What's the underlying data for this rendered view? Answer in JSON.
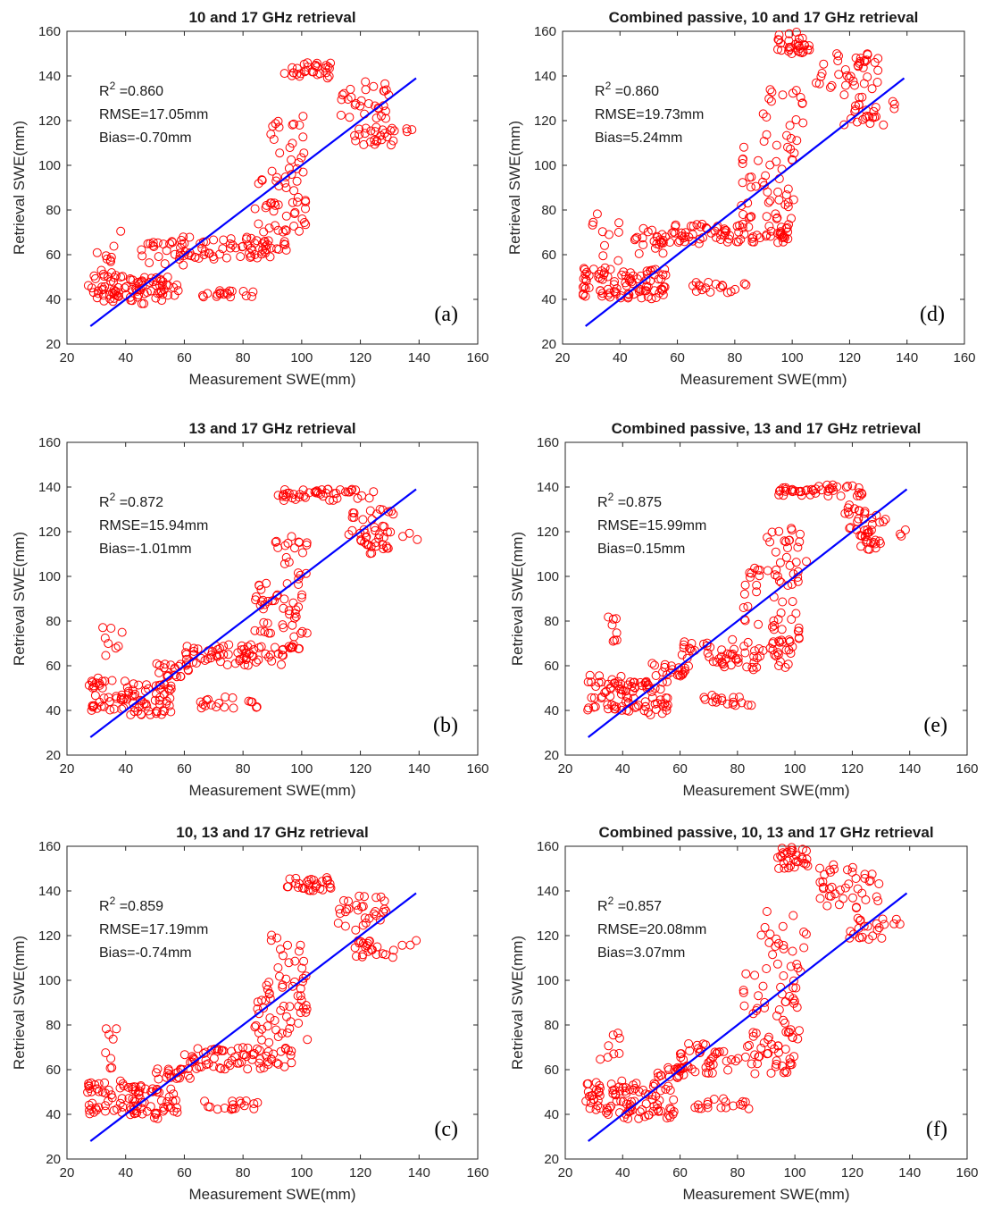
{
  "figure": {
    "background": "#ffffff",
    "marker_color": "#ff0000",
    "line_color": "#0000ff"
  },
  "chart_data": [
    {
      "id": "a",
      "type": "scatter",
      "title": "10 and 17 GHz retrieval",
      "xlabel": "Measurement SWE(mm)",
      "ylabel": "Retrieval SWE(mm)",
      "xlim": [
        20,
        160
      ],
      "ylim": [
        20,
        160
      ],
      "xticks": [
        20,
        40,
        60,
        80,
        100,
        120,
        140,
        160
      ],
      "yticks": [
        20,
        40,
        60,
        80,
        100,
        120,
        140,
        160
      ],
      "stats": {
        "r2_prefix": "R",
        "r2_exp": "2",
        "r2_value": " =0.860",
        "rmse": "RMSE=17.05mm",
        "bias": "Bias=-0.70mm"
      },
      "panel_label": "(a)",
      "fit_line": {
        "x": [
          28,
          139
        ],
        "y": [
          28,
          139
        ]
      },
      "clusters": [
        {
          "x": [
            27,
            40
          ],
          "y": [
            39,
            52
          ],
          "n": 40
        },
        {
          "x": [
            40,
            58
          ],
          "y": [
            38,
            50
          ],
          "n": 55
        },
        {
          "x": [
            29,
            39
          ],
          "y": [
            50,
            72
          ],
          "n": 10
        },
        {
          "x": [
            45,
            60
          ],
          "y": [
            55,
            66
          ],
          "n": 20
        },
        {
          "x": [
            58,
            95
          ],
          "y": [
            58,
            68
          ],
          "n": 70
        },
        {
          "x": [
            65,
            85
          ],
          "y": [
            41,
            44
          ],
          "n": 18
        },
        {
          "x": [
            84,
            102
          ],
          "y": [
            70,
            98
          ],
          "n": 45
        },
        {
          "x": [
            88,
            102
          ],
          "y": [
            98,
            122
          ],
          "n": 20
        },
        {
          "x": [
            94,
            110
          ],
          "y": [
            139,
            146
          ],
          "n": 30
        },
        {
          "x": [
            112,
            130
          ],
          "y": [
            120,
            138
          ],
          "n": 30
        },
        {
          "x": [
            118,
            132
          ],
          "y": [
            109,
            118
          ],
          "n": 25
        },
        {
          "x": [
            134,
            140
          ],
          "y": [
            114,
            118
          ],
          "n": 3
        }
      ]
    },
    {
      "id": "d",
      "type": "scatter",
      "title": "Combined passive, 10 and 17 GHz retrieval",
      "xlabel": "Measurement SWE(mm)",
      "ylabel": "Retrieval SWE(mm)",
      "xlim": [
        20,
        160
      ],
      "ylim": [
        20,
        160
      ],
      "xticks": [
        20,
        40,
        60,
        80,
        100,
        120,
        140,
        160
      ],
      "yticks": [
        20,
        40,
        60,
        80,
        100,
        120,
        140,
        160
      ],
      "stats": {
        "r2_prefix": "R",
        "r2_exp": "2",
        "r2_value": " =0.860",
        "rmse": "RMSE=19.73mm",
        "bias": "Bias=5.24mm"
      },
      "panel_label": "(d)",
      "fit_line": {
        "x": [
          28,
          139
        ],
        "y": [
          28,
          139
        ]
      },
      "clusters": [
        {
          "x": [
            27,
            40
          ],
          "y": [
            41,
            55
          ],
          "n": 40
        },
        {
          "x": [
            40,
            56
          ],
          "y": [
            40,
            54
          ],
          "n": 55
        },
        {
          "x": [
            30,
            40
          ],
          "y": [
            55,
            79
          ],
          "n": 10
        },
        {
          "x": [
            45,
            60
          ],
          "y": [
            60,
            72
          ],
          "n": 25
        },
        {
          "x": [
            58,
            100
          ],
          "y": [
            65,
            74
          ],
          "n": 80
        },
        {
          "x": [
            65,
            85
          ],
          "y": [
            43,
            48
          ],
          "n": 18
        },
        {
          "x": [
            82,
            102
          ],
          "y": [
            76,
            110
          ],
          "n": 45
        },
        {
          "x": [
            88,
            104
          ],
          "y": [
            110,
            134
          ],
          "n": 20
        },
        {
          "x": [
            94,
            106
          ],
          "y": [
            150,
            160
          ],
          "n": 30
        },
        {
          "x": [
            108,
            130
          ],
          "y": [
            130,
            152
          ],
          "n": 40
        },
        {
          "x": [
            118,
            132
          ],
          "y": [
            118,
            128
          ],
          "n": 20
        },
        {
          "x": [
            134,
            140
          ],
          "y": [
            124,
            130
          ],
          "n": 3
        }
      ]
    },
    {
      "id": "b",
      "type": "scatter",
      "title": "13 and 17 GHz retrieval",
      "xlabel": "Measurement SWE(mm)",
      "ylabel": "Retrieval SWE(mm)",
      "xlim": [
        20,
        160
      ],
      "ylim": [
        20,
        160
      ],
      "xticks": [
        20,
        40,
        60,
        80,
        100,
        120,
        140,
        160
      ],
      "yticks": [
        20,
        40,
        60,
        80,
        100,
        120,
        140,
        160
      ],
      "stats": {
        "r2_prefix": "R",
        "r2_exp": "2",
        "r2_value": " =0.872",
        "rmse": "RMSE=15.94mm",
        "bias": "Bias=-1.01mm"
      },
      "panel_label": "(b)",
      "fit_line": {
        "x": [
          28,
          139
        ],
        "y": [
          28,
          139
        ]
      },
      "clusters": [
        {
          "x": [
            27,
            40
          ],
          "y": [
            40,
            55
          ],
          "n": 40
        },
        {
          "x": [
            40,
            56
          ],
          "y": [
            38,
            52
          ],
          "n": 55
        },
        {
          "x": [
            31,
            39
          ],
          "y": [
            62,
            83
          ],
          "n": 8
        },
        {
          "x": [
            50,
            62
          ],
          "y": [
            55,
            61
          ],
          "n": 20
        },
        {
          "x": [
            60,
            100
          ],
          "y": [
            60,
            70
          ],
          "n": 75
        },
        {
          "x": [
            65,
            85
          ],
          "y": [
            40,
            46
          ],
          "n": 18
        },
        {
          "x": [
            84,
            102
          ],
          "y": [
            72,
            100
          ],
          "n": 45
        },
        {
          "x": [
            90,
            102
          ],
          "y": [
            100,
            118
          ],
          "n": 18
        },
        {
          "x": [
            92,
            125
          ],
          "y": [
            134,
            139
          ],
          "n": 45
        },
        {
          "x": [
            116,
            132
          ],
          "y": [
            118,
            130
          ],
          "n": 25
        },
        {
          "x": [
            120,
            130
          ],
          "y": [
            110,
            118
          ],
          "n": 20
        },
        {
          "x": [
            134,
            140
          ],
          "y": [
            116,
            120
          ],
          "n": 3
        }
      ]
    },
    {
      "id": "e",
      "type": "scatter",
      "title": "Combined passive, 13 and 17 GHz retrieval",
      "xlabel": "Measurement SWE(mm)",
      "ylabel": "Retrieval SWE(mm)",
      "xlim": [
        20,
        160
      ],
      "ylim": [
        20,
        160
      ],
      "xticks": [
        20,
        40,
        60,
        80,
        100,
        120,
        140,
        160
      ],
      "yticks": [
        20,
        40,
        60,
        80,
        100,
        120,
        140,
        160
      ],
      "stats": {
        "r2_prefix": "R",
        "r2_exp": "2",
        "r2_value": " =0.875",
        "rmse": "RMSE=15.99mm",
        "bias": "Bias=0.15mm"
      },
      "panel_label": "(e)",
      "fit_line": {
        "x": [
          28,
          139
        ],
        "y": [
          28,
          139
        ]
      },
      "clusters": [
        {
          "x": [
            27,
            40
          ],
          "y": [
            40,
            56
          ],
          "n": 40
        },
        {
          "x": [
            40,
            56
          ],
          "y": [
            38,
            53
          ],
          "n": 55
        },
        {
          "x": [
            32,
            38
          ],
          "y": [
            65,
            84
          ],
          "n": 8
        },
        {
          "x": [
            50,
            62
          ],
          "y": [
            55,
            62
          ],
          "n": 20
        },
        {
          "x": [
            60,
            100
          ],
          "y": [
            58,
            72
          ],
          "n": 75
        },
        {
          "x": [
            65,
            85
          ],
          "y": [
            42,
            47
          ],
          "n": 18
        },
        {
          "x": [
            82,
            102
          ],
          "y": [
            72,
            104
          ],
          "n": 45
        },
        {
          "x": [
            88,
            104
          ],
          "y": [
            104,
            122
          ],
          "n": 20
        },
        {
          "x": [
            94,
            124
          ],
          "y": [
            136,
            141
          ],
          "n": 45
        },
        {
          "x": [
            116,
            132
          ],
          "y": [
            120,
            132
          ],
          "n": 25
        },
        {
          "x": [
            120,
            130
          ],
          "y": [
            112,
            120
          ],
          "n": 20
        },
        {
          "x": [
            134,
            140
          ],
          "y": [
            118,
            121
          ],
          "n": 3
        }
      ]
    },
    {
      "id": "c",
      "type": "scatter",
      "title": "10, 13 and 17 GHz retrieval",
      "xlabel": "Measurement SWE(mm)",
      "ylabel": "Retrieval SWE(mm)",
      "xlim": [
        20,
        160
      ],
      "ylim": [
        20,
        160
      ],
      "xticks": [
        20,
        40,
        60,
        80,
        100,
        120,
        140,
        160
      ],
      "yticks": [
        20,
        40,
        60,
        80,
        100,
        120,
        140,
        160
      ],
      "stats": {
        "r2_prefix": "R",
        "r2_exp": "2",
        "r2_value": " =0.859",
        "rmse": "RMSE=17.19mm",
        "bias": "Bias=-0.74mm"
      },
      "panel_label": "(c)",
      "fit_line": {
        "x": [
          28,
          139
        ],
        "y": [
          28,
          139
        ]
      },
      "clusters": [
        {
          "x": [
            27,
            40
          ],
          "y": [
            40,
            55
          ],
          "n": 40
        },
        {
          "x": [
            40,
            58
          ],
          "y": [
            38,
            53
          ],
          "n": 60
        },
        {
          "x": [
            32,
            39
          ],
          "y": [
            60,
            79
          ],
          "n": 8
        },
        {
          "x": [
            50,
            62
          ],
          "y": [
            55,
            61
          ],
          "n": 20
        },
        {
          "x": [
            60,
            98
          ],
          "y": [
            60,
            70
          ],
          "n": 70
        },
        {
          "x": [
            65,
            85
          ],
          "y": [
            42,
            46
          ],
          "n": 18
        },
        {
          "x": [
            84,
            102
          ],
          "y": [
            72,
            98
          ],
          "n": 45
        },
        {
          "x": [
            88,
            102
          ],
          "y": [
            98,
            122
          ],
          "n": 20
        },
        {
          "x": [
            94,
            110
          ],
          "y": [
            140,
            146
          ],
          "n": 30
        },
        {
          "x": [
            112,
            130
          ],
          "y": [
            120,
            138
          ],
          "n": 30
        },
        {
          "x": [
            118,
            132
          ],
          "y": [
            110,
            118
          ],
          "n": 22
        },
        {
          "x": [
            134,
            140
          ],
          "y": [
            114,
            118
          ],
          "n": 3
        }
      ]
    },
    {
      "id": "f",
      "type": "scatter",
      "title": "Combined passive, 10, 13 and 17 GHz retrieval",
      "xlabel": "Measurement SWE(mm)",
      "ylabel": "Retrieval SWE(mm)",
      "xlim": [
        20,
        160
      ],
      "ylim": [
        20,
        160
      ],
      "xticks": [
        20,
        40,
        60,
        80,
        100,
        120,
        140,
        160
      ],
      "yticks": [
        20,
        40,
        60,
        80,
        100,
        120,
        140,
        160
      ],
      "stats": {
        "r2_prefix": "R",
        "r2_exp": "2",
        "r2_value": " =0.857",
        "rmse": "RMSE=20.08mm",
        "bias": "Bias=3.07mm"
      },
      "panel_label": "(f)",
      "fit_line": {
        "x": [
          28,
          139
        ],
        "y": [
          28,
          139
        ]
      },
      "clusters": [
        {
          "x": [
            27,
            40
          ],
          "y": [
            40,
            56
          ],
          "n": 40
        },
        {
          "x": [
            40,
            58
          ],
          "y": [
            38,
            54
          ],
          "n": 60
        },
        {
          "x": [
            32,
            39
          ],
          "y": [
            62,
            79
          ],
          "n": 8
        },
        {
          "x": [
            52,
            64
          ],
          "y": [
            56,
            62
          ],
          "n": 20
        },
        {
          "x": [
            60,
            100
          ],
          "y": [
            58,
            72
          ],
          "n": 70
        },
        {
          "x": [
            65,
            85
          ],
          "y": [
            42,
            47
          ],
          "n": 18
        },
        {
          "x": [
            82,
            102
          ],
          "y": [
            72,
            106
          ],
          "n": 45
        },
        {
          "x": [
            88,
            104
          ],
          "y": [
            106,
            134
          ],
          "n": 20
        },
        {
          "x": [
            94,
            106
          ],
          "y": [
            150,
            160
          ],
          "n": 30
        },
        {
          "x": [
            108,
            130
          ],
          "y": [
            132,
            152
          ],
          "n": 40
        },
        {
          "x": [
            118,
            132
          ],
          "y": [
            118,
            128
          ],
          "n": 20
        },
        {
          "x": [
            134,
            140
          ],
          "y": [
            124,
            128
          ],
          "n": 3
        }
      ]
    }
  ]
}
